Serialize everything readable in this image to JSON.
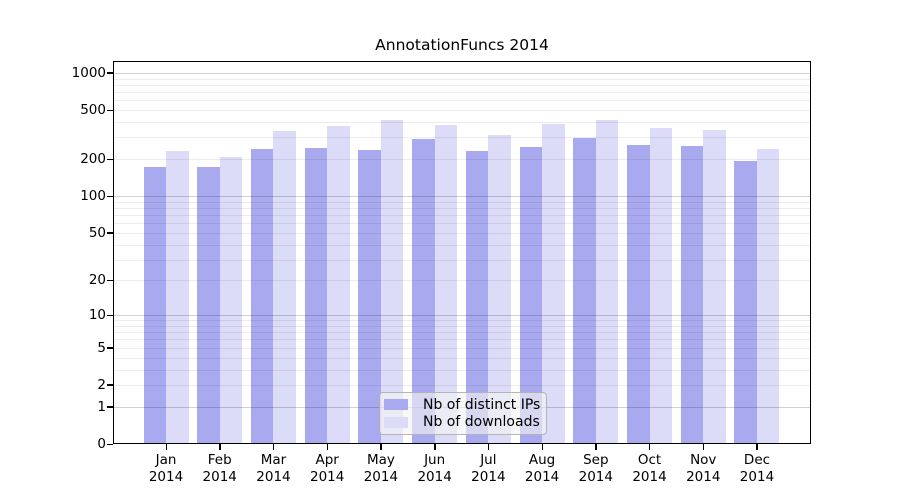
{
  "chart_data": {
    "type": "bar",
    "title": "AnnotationFuncs 2014",
    "categories": [
      "Jan",
      "Feb",
      "Mar",
      "Apr",
      "May",
      "Jun",
      "Jul",
      "Aug",
      "Sep",
      "Oct",
      "Nov",
      "Dec"
    ],
    "x_year_label": "2014",
    "series": [
      {
        "name": "Nb of distinct IPs",
        "color": "#a9a9f0",
        "values": [
          174,
          174,
          243,
          247,
          239,
          293,
          234,
          252,
          298,
          262,
          257,
          194
        ]
      },
      {
        "name": "Nb of downloads",
        "color": "#dcdcf8",
        "values": [
          234,
          209,
          340,
          373,
          417,
          380,
          315,
          387,
          412,
          359,
          346,
          243
        ]
      }
    ],
    "y_axis": {
      "scale": "log10(1+x)",
      "ticks": [
        0,
        1,
        2,
        5,
        10,
        20,
        50,
        100,
        200,
        500,
        1000
      ],
      "ylim": [
        0,
        1000
      ]
    },
    "grid": "on",
    "legend_position": "bottom-center",
    "colors": {
      "axis": "#000000",
      "background": "#ffffff"
    }
  }
}
